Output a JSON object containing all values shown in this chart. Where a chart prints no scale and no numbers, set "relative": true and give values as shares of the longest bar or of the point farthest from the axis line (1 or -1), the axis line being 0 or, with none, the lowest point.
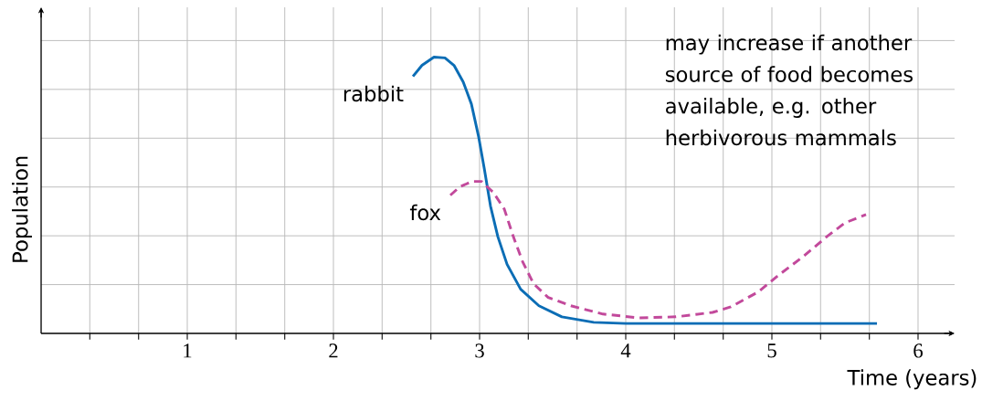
{
  "chart_data": {
    "type": "line",
    "relative": true,
    "xlabel": "Time (years)",
    "ylabel": "Population",
    "xlim": [
      0,
      6.25
    ],
    "xticks": [
      {
        "value": 0.333,
        "label": null
      },
      {
        "value": 0.667,
        "label": null
      },
      1,
      {
        "value": 1.333,
        "label": null
      },
      {
        "value": 1.667,
        "label": null
      },
      2,
      {
        "value": 2.333,
        "label": null
      },
      {
        "value": 2.667,
        "label": null
      },
      3,
      {
        "value": 3.333,
        "label": null
      },
      {
        "value": 3.667,
        "label": null
      },
      4,
      {
        "value": 4.333,
        "label": null
      },
      {
        "value": 4.667,
        "label": null
      },
      5,
      {
        "value": 5.333,
        "label": null
      },
      {
        "value": 5.667,
        "label": null
      },
      6
    ],
    "grid": true,
    "legend": false,
    "marker": "none",
    "annotations": [
      "may increase if another source of food becomes available, e.g. other herbivorous mammals"
    ],
    "series": [
      {
        "name": "rabbit",
        "color": "#0b6db5",
        "line_style": "solid",
        "x": [
          2.544,
          2.606,
          2.688,
          2.763,
          2.825,
          2.888,
          2.944,
          2.994,
          3.031,
          3.075,
          3.125,
          3.188,
          3.281,
          3.406,
          3.563,
          3.781,
          4.0,
          5.719
        ],
        "values": [
          0.93,
          0.97,
          1.0,
          0.997,
          0.97,
          0.91,
          0.83,
          0.71,
          0.6,
          0.46,
          0.35,
          0.25,
          0.16,
          0.1,
          0.06,
          0.04,
          0.036,
          0.036
        ]
      },
      {
        "name": "fox",
        "color": "#c2499b",
        "line_style": "dashed",
        "x": [
          2.8,
          2.863,
          2.95,
          3.013,
          3.094,
          3.169,
          3.231,
          3.294,
          3.369,
          3.469,
          3.625,
          3.844,
          4.094,
          4.344,
          4.594,
          4.719,
          4.906,
          5.044,
          5.219,
          5.375,
          5.5,
          5.644
        ],
        "values": [
          0.5,
          0.53,
          0.55,
          0.55,
          0.51,
          0.45,
          0.35,
          0.26,
          0.18,
          0.13,
          0.1,
          0.07,
          0.056,
          0.06,
          0.076,
          0.096,
          0.15,
          0.21,
          0.28,
          0.35,
          0.4,
          0.43
        ]
      }
    ]
  }
}
